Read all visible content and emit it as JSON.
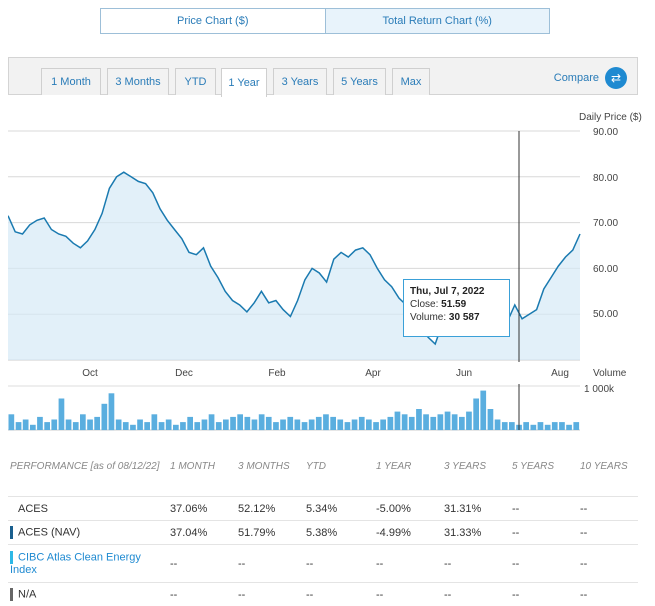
{
  "chart_toggle": {
    "price_label": "Price Chart ($)",
    "return_label": "Total Return Chart (%)"
  },
  "ranges": [
    "1 Month",
    "3 Months",
    "YTD",
    "1 Year",
    "3 Years",
    "5 Years",
    "Max"
  ],
  "active_range": "1 Year",
  "compare_label": "Compare",
  "colors": {
    "accent": "#1f8ad1",
    "line": "#1a7ab0",
    "fill": "#d5eaf7",
    "volume": "#5aaedf"
  },
  "chart_data": {
    "type": "line",
    "ylabel": "Daily Price ($)",
    "y_ticks": [
      "90.00",
      "80.00",
      "70.00",
      "60.00",
      "50.00"
    ],
    "ylim": [
      40,
      90
    ],
    "x_ticks": [
      "Oct",
      "Dec",
      "Feb",
      "Apr",
      "Jun",
      "Aug"
    ],
    "series": [
      {
        "values": [
          71.5,
          68,
          67.5,
          69.5,
          70.5,
          71,
          68.5,
          67.5,
          67,
          65.5,
          64.5,
          66,
          68.5,
          72,
          77.5,
          80,
          81,
          80,
          79,
          78.5,
          76.5,
          73,
          70.5,
          68.5,
          66.5,
          63.5,
          63,
          64.5,
          60.5,
          58,
          55,
          53,
          52,
          50.5,
          52.5,
          55,
          52.5,
          53,
          51,
          49.5,
          53,
          57.5,
          60,
          59,
          57,
          62,
          63.5,
          62.5,
          64,
          64.5,
          63,
          60,
          57.5,
          56,
          53.5,
          52,
          50.5,
          48.5,
          45,
          43.5,
          48,
          49,
          47,
          51,
          48.5,
          49.5,
          52,
          51.5,
          49.5,
          48.5,
          52,
          49,
          50,
          51,
          55.5,
          58,
          60.5,
          62.5,
          64,
          67.5
        ]
      }
    ],
    "volume_label": "Volume",
    "volume_tick": "1 000k",
    "volume_values": [
      6,
      3,
      4,
      2,
      5,
      3,
      4,
      12,
      4,
      3,
      6,
      4,
      5,
      10,
      14,
      4,
      3,
      2,
      4,
      3,
      6,
      3,
      4,
      2,
      3,
      5,
      3,
      4,
      6,
      3,
      4,
      5,
      6,
      5,
      4,
      6,
      5,
      3,
      4,
      5,
      4,
      3,
      4,
      5,
      6,
      5,
      4,
      3,
      4,
      5,
      4,
      3,
      4,
      5,
      7,
      6,
      5,
      8,
      6,
      5,
      6,
      7,
      6,
      5,
      7,
      12,
      15,
      8,
      4,
      3,
      3,
      2,
      3,
      2,
      3,
      2,
      3,
      3,
      2,
      3
    ],
    "tooltip": {
      "date": "Thu, Jul 7, 2022",
      "close_label": "Close:",
      "close": "51.59",
      "volume_label": "Volume:",
      "volume": "30 587"
    }
  },
  "performance": {
    "header": [
      "PERFORMANCE [as of 08/12/22]",
      "1 MONTH",
      "3 MONTHS",
      "YTD",
      "1 YEAR",
      "3 YEARS",
      "5 YEARS",
      "10 YEARS"
    ],
    "rows": [
      {
        "name": "ACES",
        "marker": "",
        "values": [
          "37.06%",
          "52.12%",
          "5.34%",
          "-5.00%",
          "31.31%",
          "--",
          "--"
        ]
      },
      {
        "name": "ACES (NAV)",
        "marker": "#1a5f8e",
        "values": [
          "37.04%",
          "51.79%",
          "5.38%",
          "-4.99%",
          "31.33%",
          "--",
          "--"
        ]
      },
      {
        "name": "CIBC Atlas Clean Energy Index",
        "marker": "#2db8e6",
        "values": [
          "--",
          "--",
          "--",
          "--",
          "--",
          "--",
          "--"
        ]
      },
      {
        "name": "N/A",
        "marker": "#666666",
        "values": [
          "--",
          "--",
          "--",
          "--",
          "--",
          "--",
          "--"
        ]
      }
    ]
  }
}
